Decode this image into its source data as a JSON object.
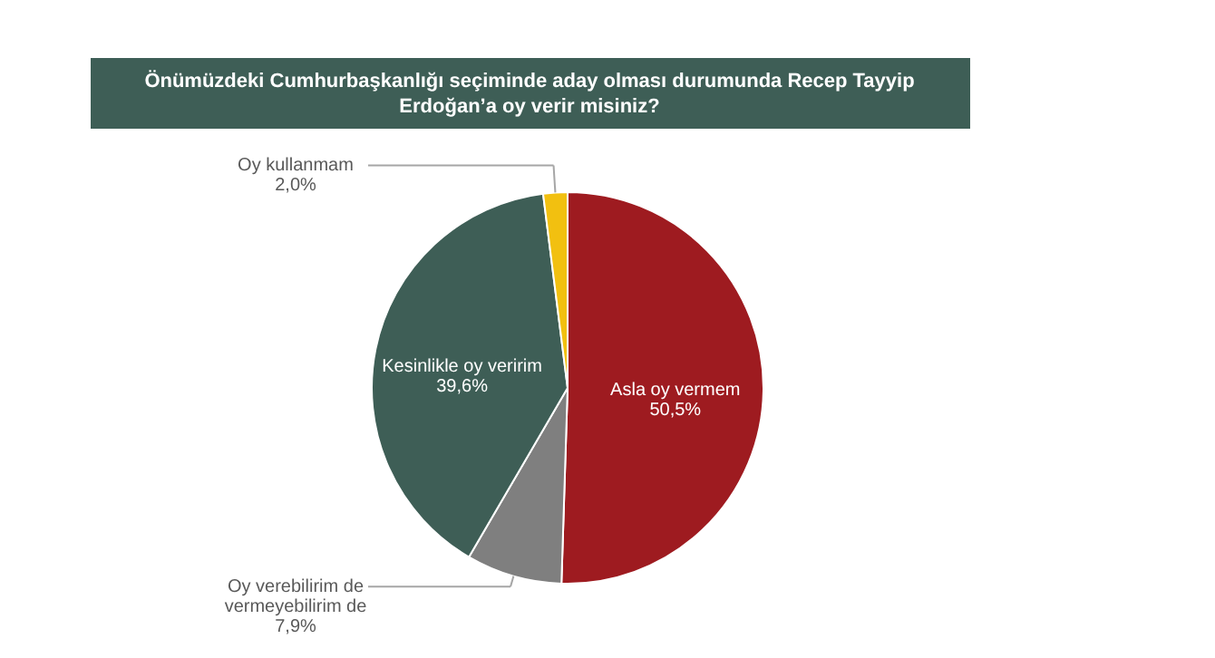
{
  "chart_data": {
    "type": "pie",
    "title": "Önümüzdeki Cumhurbaşkanlığı seçiminde aday olması durumunda Recep Tayyip\nErdoğan’a oy verir misiniz?",
    "categories": [
      "Asla oy vermem",
      "Oy verebilirim de\nvermeyebilirim de",
      "Kesinlikle oy veririm",
      "Oy kullanmam"
    ],
    "values": [
      50.5,
      7.9,
      39.6,
      2.0
    ],
    "value_labels": [
      "50,5%",
      "7,9%",
      "39,6%",
      "2,0%"
    ],
    "colors": [
      "#9e1b20",
      "#7f7f7f",
      "#3e5e56",
      "#f2c010"
    ]
  }
}
